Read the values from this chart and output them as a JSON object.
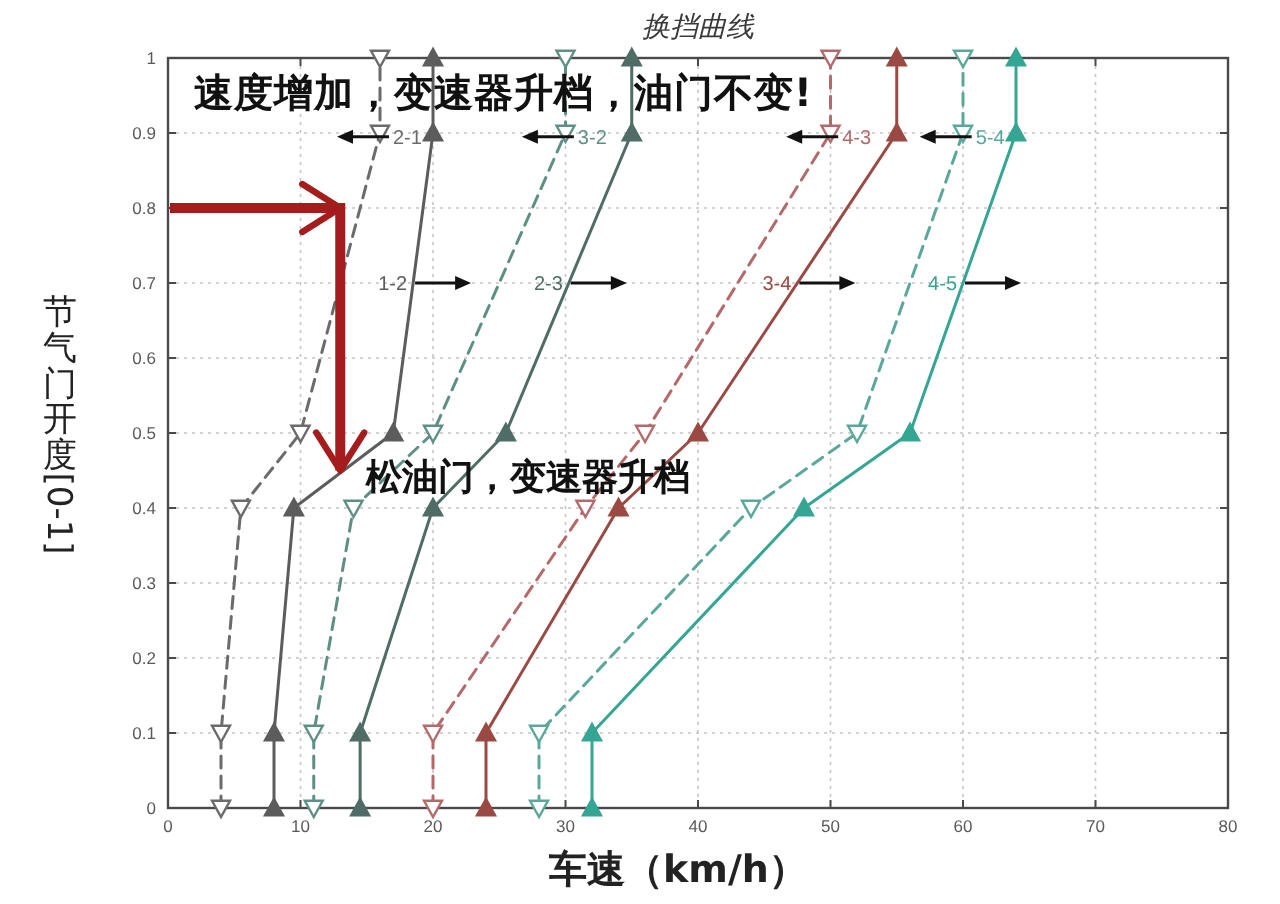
{
  "chart_data": {
    "type": "line",
    "title": "换挡曲线",
    "xlabel": "车速（km/h）",
    "ylabel": "节气门开度 [0-1]",
    "xlim": [
      0,
      80
    ],
    "xticks": [
      0,
      10,
      20,
      30,
      40,
      50,
      60,
      70,
      80
    ],
    "ylim": [
      0,
      1
    ],
    "yticks": [
      0,
      0.1,
      0.2,
      0.3,
      0.4,
      0.5,
      0.6,
      0.7,
      0.8,
      0.9,
      1
    ],
    "grid": true,
    "marker": "triangle",
    "series": [
      {
        "name": "2-1",
        "color": "#6b6b6b",
        "line_style": "dashed",
        "x": [
          4,
          4,
          5.5,
          10,
          16,
          16
        ],
        "values": [
          0,
          0.1,
          0.4,
          0.5,
          0.9,
          1
        ]
      },
      {
        "name": "1-2",
        "color": "#5c5c5c",
        "line_style": "solid",
        "x": [
          8,
          8,
          9.5,
          17,
          20,
          20
        ],
        "values": [
          0,
          0.1,
          0.4,
          0.5,
          0.9,
          1
        ]
      },
      {
        "name": "3-2",
        "color": "#5e8f86",
        "line_style": "dashed",
        "x": [
          11,
          11,
          14,
          20,
          30,
          30
        ],
        "values": [
          0,
          0.1,
          0.4,
          0.5,
          0.9,
          1
        ]
      },
      {
        "name": "2-3",
        "color": "#4f6d66",
        "line_style": "solid",
        "x": [
          14.5,
          14.5,
          20,
          25.5,
          35,
          35
        ],
        "values": [
          0,
          0.1,
          0.4,
          0.5,
          0.9,
          1
        ]
      },
      {
        "name": "4-3",
        "color": "#b46a6a",
        "line_style": "dashed",
        "x": [
          20,
          20,
          31.5,
          36,
          50,
          50
        ],
        "values": [
          0,
          0.1,
          0.4,
          0.5,
          0.9,
          1
        ]
      },
      {
        "name": "3-4",
        "color": "#9b4a43",
        "line_style": "solid",
        "x": [
          24,
          24,
          34,
          40,
          55,
          55
        ],
        "values": [
          0,
          0.1,
          0.4,
          0.5,
          0.9,
          1
        ]
      },
      {
        "name": "5-4",
        "color": "#5aa89b",
        "line_style": "dashed",
        "x": [
          28,
          28,
          44,
          52,
          60,
          60
        ],
        "values": [
          0,
          0.1,
          0.4,
          0.5,
          0.9,
          1
        ]
      },
      {
        "name": "4-5",
        "color": "#35a594",
        "line_style": "solid",
        "x": [
          32,
          32,
          48,
          56,
          64,
          64
        ],
        "values": [
          0,
          0.1,
          0.4,
          0.5,
          0.9,
          1
        ]
      }
    ],
    "annotations": [
      "速度增加，变速器升档，油门不变!",
      {
        "text": "松油门，变速器升档",
        "x": 13,
        "y": 0.45
      }
    ]
  }
}
